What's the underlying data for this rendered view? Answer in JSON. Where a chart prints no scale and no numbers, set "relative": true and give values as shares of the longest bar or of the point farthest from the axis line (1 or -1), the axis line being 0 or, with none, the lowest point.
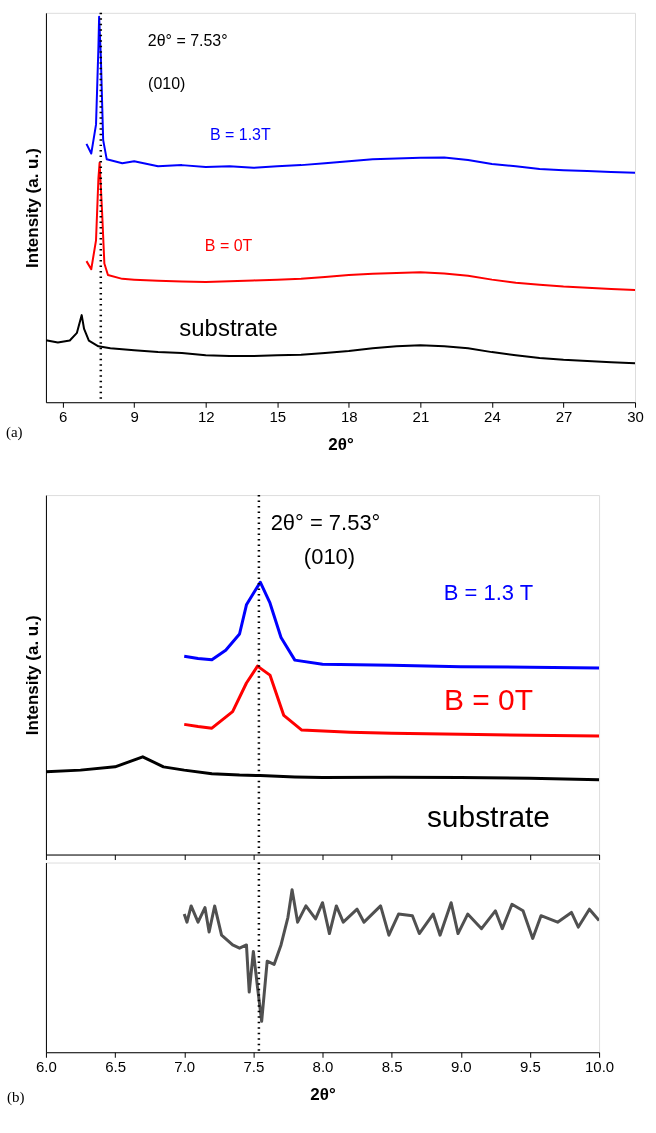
{
  "chart_data": [
    {
      "type": "line",
      "relative": true,
      "xlabel": "2θ°",
      "ylabel": "Intensity (a. u.)",
      "xlim": [
        5.3,
        30
      ],
      "xticks": [
        6,
        9,
        12,
        15,
        18,
        21,
        24,
        27,
        30
      ],
      "tick_labels": "x",
      "grid": false,
      "series": [
        {
          "name": "B = 1.3T",
          "color": "#0000ff",
          "x": [
            7.0,
            7.2,
            7.4,
            7.5,
            7.53,
            7.6,
            7.7,
            7.85,
            8.5,
            9,
            10,
            11,
            12,
            13,
            14,
            15,
            16,
            17,
            18,
            19,
            20,
            21,
            22,
            23,
            24,
            25,
            26,
            27,
            28,
            29,
            30
          ],
          "values": [
            0.67,
            0.645,
            0.72,
            0.92,
            1.0,
            0.9,
            0.68,
            0.63,
            0.62,
            0.625,
            0.612,
            0.615,
            0.61,
            0.612,
            0.608,
            0.612,
            0.615,
            0.62,
            0.625,
            0.63,
            0.632,
            0.634,
            0.635,
            0.628,
            0.618,
            0.612,
            0.605,
            0.602,
            0.6,
            0.597,
            0.595
          ]
        },
        {
          "name": "B = 0T",
          "color": "#ff0000",
          "x": [
            7.0,
            7.2,
            7.4,
            7.5,
            7.55,
            7.65,
            7.75,
            7.9,
            8.5,
            9,
            10,
            11,
            12,
            13,
            14,
            15,
            16,
            17,
            18,
            19,
            20,
            21,
            22,
            23,
            24,
            25,
            26,
            27,
            28,
            29,
            30
          ],
          "values": [
            0.366,
            0.345,
            0.42,
            0.58,
            0.621,
            0.5,
            0.36,
            0.33,
            0.32,
            0.318,
            0.315,
            0.313,
            0.312,
            0.314,
            0.316,
            0.318,
            0.32,
            0.325,
            0.33,
            0.333,
            0.335,
            0.337,
            0.334,
            0.328,
            0.318,
            0.31,
            0.305,
            0.3,
            0.297,
            0.294,
            0.291
          ]
        },
        {
          "name": "substrate",
          "color": "#000000",
          "x": [
            5.3,
            5.8,
            6.3,
            6.6,
            6.8,
            6.9,
            7.1,
            7.5,
            8,
            9,
            10,
            11,
            12,
            13,
            14,
            15,
            16,
            17,
            18,
            19,
            20,
            21,
            22,
            23,
            24,
            25,
            26,
            27,
            28,
            29,
            30
          ],
          "values": [
            0.161,
            0.155,
            0.16,
            0.18,
            0.226,
            0.19,
            0.16,
            0.145,
            0.14,
            0.135,
            0.13,
            0.128,
            0.122,
            0.12,
            0.12,
            0.122,
            0.123,
            0.128,
            0.133,
            0.14,
            0.145,
            0.148,
            0.145,
            0.14,
            0.13,
            0.122,
            0.115,
            0.11,
            0.107,
            0.104,
            0.101
          ]
        }
      ],
      "ref_lines": [
        {
          "axis": "x",
          "value": 7.6,
          "color": "#000000",
          "line_style": "dotted"
        }
      ],
      "annotations": [
        "2θ° = 7.53°",
        "(010)",
        "(a)"
      ]
    },
    {
      "type": "line",
      "relative": true,
      "ylabel": "Intensity (a. u.)",
      "xlim": [
        6.0,
        10.0
      ],
      "xticks": [
        6,
        6.5,
        7,
        7.5,
        8,
        8.5,
        9,
        9.5,
        10
      ],
      "tick_labels": false,
      "grid": false,
      "series": [
        {
          "name": "B = 1.3 T",
          "color": "#0000ff",
          "x": [
            7.0,
            7.1,
            7.2,
            7.3,
            7.4,
            7.45,
            7.55,
            7.62,
            7.7,
            7.8,
            8.0,
            8.5,
            9.0,
            9.5,
            10.0
          ],
          "values": [
            0.728,
            0.72,
            0.715,
            0.75,
            0.81,
            0.917,
            1.0,
            0.924,
            0.797,
            0.714,
            0.699,
            0.695,
            0.69,
            0.688,
            0.685
          ]
        },
        {
          "name": "B = 0T",
          "color": "#ff0000",
          "x": [
            7.0,
            7.1,
            7.2,
            7.35,
            7.45,
            7.53,
            7.62,
            7.72,
            7.85,
            8.2,
            8.5,
            9.0,
            9.5,
            10.0
          ],
          "values": [
            0.478,
            0.47,
            0.464,
            0.525,
            0.63,
            0.692,
            0.659,
            0.511,
            0.457,
            0.449,
            0.445,
            0.442,
            0.438,
            0.435
          ]
        },
        {
          "name": "substrate",
          "color": "#000000",
          "x": [
            6.0,
            6.25,
            6.5,
            6.6,
            6.7,
            6.85,
            7.0,
            7.2,
            7.4,
            7.55,
            7.8,
            8.0,
            8.5,
            9.0,
            9.5,
            10.0
          ],
          "values": [
            0.304,
            0.31,
            0.322,
            0.34,
            0.359,
            0.322,
            0.31,
            0.297,
            0.292,
            0.29,
            0.285,
            0.283,
            0.284,
            0.283,
            0.28,
            0.275
          ]
        }
      ],
      "ref_lines": [
        {
          "axis": "x",
          "value": 7.54,
          "color": "#000000",
          "line_style": "dotted"
        }
      ],
      "annotations": [
        "2θ° = 7.53°",
        "(010)"
      ]
    },
    {
      "type": "line",
      "relative": true,
      "xlabel": "2θ°",
      "xlim": [
        6.0,
        10.0
      ],
      "xticks": [
        {
          "value": 6,
          "label": "6.0"
        },
        6.5,
        {
          "value": 7,
          "label": "7.0"
        },
        7.5,
        {
          "value": 8,
          "label": "8.0"
        },
        8.5,
        {
          "value": 9,
          "label": "9.0"
        },
        9.5,
        {
          "value": 10,
          "label": "10.0"
        }
      ],
      "tick_labels": "x",
      "grid": false,
      "series": [
        {
          "color": "#505050",
          "x": [
            7.0,
            7.02,
            7.05,
            7.1,
            7.15,
            7.18,
            7.22,
            7.27,
            7.35,
            7.4,
            7.45,
            7.47,
            7.5,
            7.53,
            7.56,
            7.6,
            7.65,
            7.7,
            7.75,
            7.78,
            7.82,
            7.88,
            7.95,
            8.0,
            8.05,
            8.1,
            8.15,
            8.25,
            8.3,
            8.42,
            8.48,
            8.55,
            8.65,
            8.7,
            8.8,
            8.85,
            8.93,
            8.98,
            9.05,
            9.15,
            9.25,
            9.3,
            9.37,
            9.45,
            9.52,
            9.58,
            9.7,
            9.8,
            9.85,
            9.93,
            10.0
          ],
          "values": [
            0.85,
            0.8,
            0.9,
            0.8,
            0.89,
            0.74,
            0.9,
            0.72,
            0.66,
            0.64,
            0.66,
            0.37,
            0.62,
            0.4,
            0.19,
            0.56,
            0.54,
            0.66,
            0.83,
            1.0,
            0.8,
            0.9,
            0.82,
            0.92,
            0.73,
            0.9,
            0.8,
            0.88,
            0.8,
            0.9,
            0.72,
            0.85,
            0.84,
            0.73,
            0.85,
            0.72,
            0.92,
            0.73,
            0.85,
            0.76,
            0.87,
            0.76,
            0.91,
            0.87,
            0.7,
            0.84,
            0.8,
            0.86,
            0.77,
            0.88,
            0.81
          ]
        }
      ],
      "ref_lines": [
        {
          "axis": "x",
          "value": 7.54,
          "color": "#000000",
          "line_style": "dotted"
        }
      ],
      "annotations": [
        "(b)"
      ]
    }
  ]
}
